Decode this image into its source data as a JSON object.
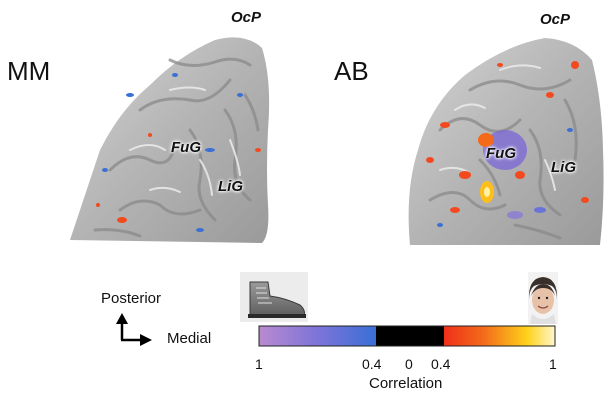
{
  "panels": [
    {
      "subject": "MM",
      "regions": {
        "occipital_pole": "OcP",
        "fusiform_gyrus": "FuG",
        "lingual_gyrus": "LiG"
      }
    },
    {
      "subject": "AB",
      "regions": {
        "occipital_pole": "OcP",
        "fusiform_gyrus": "FuG",
        "lingual_gyrus": "LiG"
      }
    }
  ],
  "orientation": {
    "up_label": "Posterior",
    "right_label": "Medial"
  },
  "colorbar": {
    "ticks": [
      "1",
      "0.4",
      "0",
      "0.4",
      "1"
    ],
    "label": "Correlation",
    "left_icon": "shoe-icon",
    "right_icon": "face-icon",
    "colors": {
      "purple": "#b07ac9",
      "blue": "#3a78d6",
      "black": "#000000",
      "red": "#f24a1e",
      "yellow": "#ffe21a",
      "cream": "#fffbe6"
    }
  }
}
